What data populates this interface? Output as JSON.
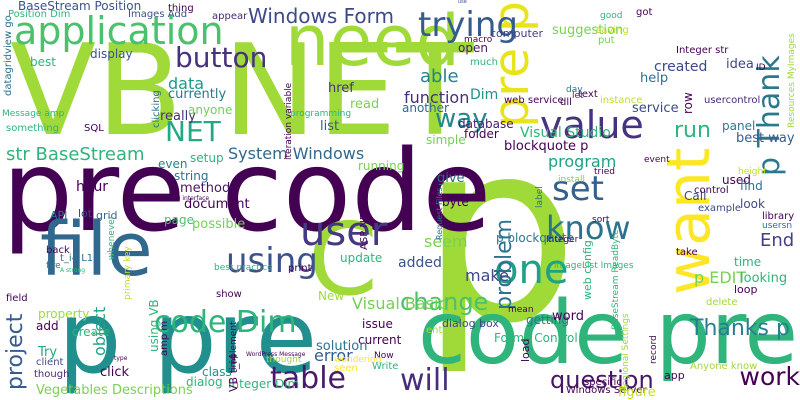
{
  "words": [
    {
      "text": "p",
      "color": "#a0da39"
    },
    {
      "text": "pre code",
      "color": "#440154"
    },
    {
      "text": "VB NET",
      "color": "#a0da39"
    },
    {
      "text": "code pre",
      "color": "#2fb47c"
    },
    {
      "text": "p pre",
      "color": "#218f8d"
    },
    {
      "text": "pre p",
      "color": "#e7e419"
    },
    {
      "text": "need",
      "color": "#a0da39"
    },
    {
      "text": "use",
      "color": "#3e4989"
    },
    {
      "text": "want",
      "color": "#fde725"
    },
    {
      "text": "file",
      "color": "#31688e"
    },
    {
      "text": "C",
      "color": "#a0da39"
    },
    {
      "text": "application",
      "color": "#4ac16d"
    },
    {
      "text": "p Thank",
      "color": "#2a788e"
    },
    {
      "text": "trying",
      "color": "#365c8d"
    },
    {
      "text": "user",
      "color": "#443983"
    },
    {
      "text": "one",
      "color": "#1fa187"
    },
    {
      "text": "value",
      "color": "#46327e"
    },
    {
      "text": "set",
      "color": "#355f8d"
    },
    {
      "text": "know",
      "color": "#2c728e"
    },
    {
      "text": "using",
      "color": "#3b528b"
    },
    {
      "text": "code Dim",
      "color": "#2fb47c"
    },
    {
      "text": "table",
      "color": "#481a6c"
    },
    {
      "text": "will",
      "color": "#472d7b"
    },
    {
      "text": "work",
      "color": "#440154"
    },
    {
      "text": "question",
      "color": "#481668"
    },
    {
      "text": "change",
      "color": "#4ac16d"
    },
    {
      "text": "Thanks p",
      "color": "#277f8e"
    },
    {
      "text": "problem",
      "color": "#2c728e"
    },
    {
      "text": "way",
      "color": "#24868e"
    },
    {
      "text": "button",
      "color": "#46327e"
    },
    {
      "text": "NET",
      "color": "#22a884"
    },
    {
      "text": "project",
      "color": "#365c8d"
    },
    {
      "text": "Windows Form",
      "color": "#3e4989"
    },
    {
      "text": "BaseStream Position",
      "color": "#3b528b"
    },
    {
      "text": "str BaseStream",
      "color": "#2fb47c"
    },
    {
      "text": "System Windows",
      "color": "#31688e"
    },
    {
      "text": "run",
      "color": "#2fb47c"
    },
    {
      "text": "data",
      "color": "#1f9a8a"
    },
    {
      "text": "able",
      "color": "#26828e"
    },
    {
      "text": "function",
      "color": "#472d7b"
    },
    {
      "text": "Dim",
      "color": "#21918c"
    },
    {
      "text": "End",
      "color": "#433e85"
    },
    {
      "text": "program",
      "color": "#1fa187"
    },
    {
      "text": "seem",
      "color": "#7ad151"
    },
    {
      "text": "added",
      "color": "#3b528b"
    },
    {
      "text": "make",
      "color": "#3e4989"
    },
    {
      "text": "p blockquote",
      "color": "#2a788e"
    },
    {
      "text": "p EDIT",
      "color": "#7ad151"
    },
    {
      "text": "object",
      "color": "#1fa187"
    },
    {
      "text": "error",
      "color": "#365c8d"
    },
    {
      "text": "Visual Basic",
      "color": "#73d056"
    },
    {
      "text": "blockquote p",
      "color": "#440154"
    },
    {
      "text": "Visual Studio",
      "color": "#2fb47c"
    },
    {
      "text": "created",
      "color": "#3e4989"
    },
    {
      "text": "idea",
      "color": "#404688"
    },
    {
      "text": "best way",
      "color": "#355f8d"
    },
    {
      "text": "Integer str",
      "color": "#440154"
    },
    {
      "text": "suggestion",
      "color": "#7ad151"
    },
    {
      "text": "computer",
      "color": "#433e85"
    },
    {
      "text": "display",
      "color": "#3b528b"
    },
    {
      "text": "best",
      "color": "#2fb47c"
    },
    {
      "text": "href",
      "color": "#46327e"
    },
    {
      "text": "list",
      "color": "#38598c"
    },
    {
      "text": "database",
      "color": "#481a6c"
    },
    {
      "text": "currently",
      "color": "#2a788e"
    },
    {
      "text": "really",
      "color": "#46327e"
    },
    {
      "text": "read",
      "color": "#7ad151"
    },
    {
      "text": "folder",
      "color": "#440154"
    },
    {
      "text": "another",
      "color": "#31688e"
    },
    {
      "text": "open",
      "color": "#481668"
    },
    {
      "text": "web service",
      "color": "#440154"
    },
    {
      "text": "service",
      "color": "#3e4989"
    },
    {
      "text": "help",
      "color": "#2c728e"
    },
    {
      "text": "panel",
      "color": "#2a788e"
    },
    {
      "text": "usercontrol",
      "color": "#482878"
    },
    {
      "text": "instance",
      "color": "#c2df23"
    },
    {
      "text": "text",
      "color": "#440154"
    },
    {
      "text": "hour",
      "color": "#440154"
    },
    {
      "text": "method",
      "color": "#481668"
    },
    {
      "text": "document",
      "color": "#440154"
    },
    {
      "text": "page",
      "color": "#4ac16d"
    },
    {
      "text": "possible",
      "color": "#73d056"
    },
    {
      "text": "string",
      "color": "#2c728e"
    },
    {
      "text": "setup",
      "color": "#2fb47c"
    },
    {
      "text": "even",
      "color": "#26828e"
    },
    {
      "text": "byte",
      "color": "#440154"
    },
    {
      "text": "give",
      "color": "#31688e"
    },
    {
      "text": "update",
      "color": "#2fb47c"
    },
    {
      "text": "getting",
      "color": "#2a788e"
    },
    {
      "text": "current",
      "color": "#440154"
    },
    {
      "text": "dialog box",
      "color": "#3e4989"
    },
    {
      "text": "solution",
      "color": "#2c728e"
    },
    {
      "text": "issue",
      "color": "#440154"
    },
    {
      "text": "word",
      "color": "#440154"
    },
    {
      "text": "Forms Control",
      "color": "#2fb47c"
    },
    {
      "text": "Integer Dim",
      "color": "#2fb47c"
    },
    {
      "text": "click",
      "color": "#440154"
    },
    {
      "text": "dialog",
      "color": "#2fb47c"
    },
    {
      "text": "class",
      "color": "#21918c"
    },
    {
      "text": "Vegetables Descriptions",
      "color": "#7ad151"
    },
    {
      "text": "Windows Server",
      "color": "#440154"
    },
    {
      "text": "figure",
      "color": "#c2df23"
    },
    {
      "text": "property",
      "color": "#a0da39"
    },
    {
      "text": "create",
      "color": "#2fb47c"
    },
    {
      "text": "add",
      "color": "#440154"
    },
    {
      "text": "Try",
      "color": "#22a884"
    },
    {
      "text": "client",
      "color": "#3e4989"
    },
    {
      "text": "though",
      "color": "#482878"
    },
    {
      "text": "something",
      "color": "#2fb47c"
    },
    {
      "text": "lot",
      "color": "#433e85"
    },
    {
      "text": "grid",
      "color": "#31688e"
    },
    {
      "text": "API",
      "color": "#2c728e"
    },
    {
      "text": "field",
      "color": "#440154"
    },
    {
      "text": "Message amp",
      "color": "#2fb47c"
    },
    {
      "text": "SQL",
      "color": "#440154"
    },
    {
      "text": "datagridview go",
      "color": "#2c728e"
    },
    {
      "text": "Position Dim",
      "color": "#2fb47c"
    },
    {
      "text": "Images Add",
      "color": "#3b528b"
    },
    {
      "text": "thing",
      "color": "#440154"
    },
    {
      "text": "appear",
      "color": "#482878"
    },
    {
      "text": "good",
      "color": "#2fb47c"
    },
    {
      "text": "got",
      "color": "#440154"
    },
    {
      "text": "saving",
      "color": "#c2df23"
    },
    {
      "text": "put",
      "color": "#7ad151"
    },
    {
      "text": "macro",
      "color": "#440154"
    },
    {
      "text": "much",
      "color": "#2fb47c"
    },
    {
      "text": "row",
      "color": "#440154"
    },
    {
      "text": "day",
      "color": "#2c728e"
    },
    {
      "text": "let",
      "color": "#482878"
    },
    {
      "text": "dll",
      "color": "#440154"
    },
    {
      "text": "running",
      "color": "#7ad151"
    },
    {
      "text": "simple",
      "color": "#73d056"
    },
    {
      "text": "tried",
      "color": "#440154"
    },
    {
      "text": "event",
      "color": "#440154"
    },
    {
      "text": "install",
      "color": "#7ad151"
    },
    {
      "text": "used",
      "color": "#440154"
    },
    {
      "text": "find",
      "color": "#2c728e"
    },
    {
      "text": "look",
      "color": "#3e4989"
    },
    {
      "text": "height",
      "color": "#c2df23"
    },
    {
      "text": "time",
      "color": "#2fb47c"
    },
    {
      "text": "Call",
      "color": "#3e4989"
    },
    {
      "text": "control",
      "color": "#440154"
    },
    {
      "text": "example",
      "color": "#3e4989"
    },
    {
      "text": "library",
      "color": "#440154"
    },
    {
      "text": "take",
      "color": "#440154"
    },
    {
      "text": "usersn",
      "color": "#2c728e"
    },
    {
      "text": "looking",
      "color": "#2fb47c"
    },
    {
      "text": "loop",
      "color": "#440154"
    },
    {
      "text": "delete",
      "color": "#a0da39"
    },
    {
      "text": "sort",
      "color": "#440154"
    },
    {
      "text": "label",
      "color": "#2c728e"
    },
    {
      "text": "Integer",
      "color": "#440154"
    },
    {
      "text": "web config",
      "color": "#2fb47c"
    },
    {
      "text": "mean",
      "color": "#440154"
    },
    {
      "text": "entry",
      "color": "#a0da39"
    },
    {
      "text": "load",
      "color": "#440154"
    },
    {
      "text": "specific",
      "color": "#440154"
    },
    {
      "text": "app",
      "color": "#440154"
    },
    {
      "text": "record",
      "color": "#440154"
    },
    {
      "text": "Anyone know",
      "color": "#a0da39"
    },
    {
      "text": "Write",
      "color": "#2fb47c"
    },
    {
      "text": "Now",
      "color": "#440154"
    },
    {
      "text": "seen",
      "color": "#fde725"
    },
    {
      "text": "wondering",
      "color": "#fde725"
    },
    {
      "text": "thought",
      "color": "#a0da39"
    },
    {
      "text": "implement",
      "color": "#440154"
    },
    {
      "text": "best practice",
      "color": "#2fb47c"
    },
    {
      "text": "print",
      "color": "#440154"
    },
    {
      "text": "show",
      "color": "#440154"
    },
    {
      "text": "New",
      "color": "#a0da39"
    },
    {
      "text": "ASP NET",
      "color": "#440154"
    },
    {
      "text": "anyone",
      "color": "#73d056"
    },
    {
      "text": "clicking",
      "color": "#2c728e"
    },
    {
      "text": "programming",
      "color": "#2fb47c"
    },
    {
      "text": "iteration variable",
      "color": "#440154"
    },
    {
      "text": "whenever",
      "color": "#2fb47c"
    },
    {
      "text": "primary key",
      "color": "#c2df23"
    },
    {
      "text": "back",
      "color": "#440154"
    },
    {
      "text": "t_i4 L1",
      "color": "#2c728e"
    },
    {
      "text": "fire",
      "color": "#2c728e"
    },
    {
      "text": "using VB",
      "color": "#2fb47c"
    },
    {
      "text": "amp m",
      "color": "#440154"
    },
    {
      "text": "VB t_i4",
      "color": "#440154"
    },
    {
      "text": "BaseStream ReadByte",
      "color": "#2fb47c"
    },
    {
      "text": "Regional Settings",
      "color": "#a0da39"
    },
    {
      "text": "Request Files",
      "color": "#2c728e"
    },
    {
      "text": "imageList Images",
      "color": "#2fb47c"
    },
    {
      "text": "Resources MyImages",
      "color": "#a0da39"
    },
    {
      "text": "ID",
      "color": "#440154"
    },
    {
      "text": "WordPress Message",
      "color": "#440154"
    },
    {
      "text": "Something interface",
      "color": "#440154"
    },
    {
      "text": "A strong",
      "color": "#2fb47c"
    },
    {
      "text": "type",
      "color": "#440154"
    }
  ]
}
